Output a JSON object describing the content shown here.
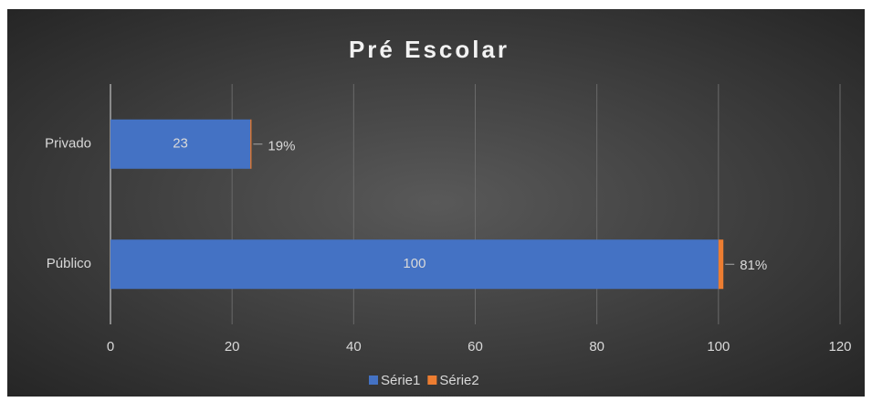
{
  "chart_data": {
    "type": "stacked-bar-horizontal",
    "title": "Pré Escolar",
    "categories": [
      "Privado",
      "Público"
    ],
    "series": [
      {
        "name": "Série1",
        "color": "#4472c4",
        "values": [
          23,
          100
        ]
      },
      {
        "name": "Série2",
        "color": "#ed7d31",
        "values": [
          0.19,
          0.81
        ],
        "value_labels": [
          "19%",
          "81%"
        ]
      }
    ],
    "xlim": [
      0,
      120
    ],
    "xticks": [
      0,
      20,
      40,
      60,
      80,
      100,
      120
    ],
    "grid": true,
    "legend": "bottom"
  }
}
